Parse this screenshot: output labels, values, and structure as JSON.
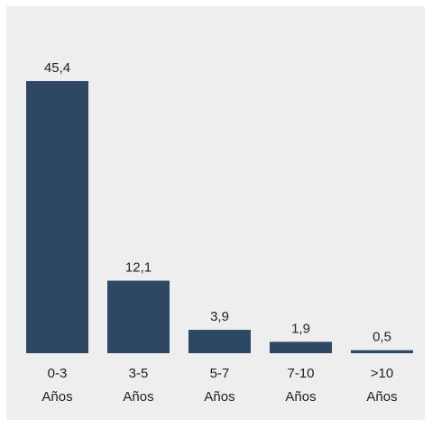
{
  "chart_data": {
    "type": "bar",
    "categories": [
      [
        "0-3",
        "Años"
      ],
      [
        "3-5",
        "Años"
      ],
      [
        "5-7",
        "Años"
      ],
      [
        "7-10",
        "Años"
      ],
      [
        ">10",
        "Años"
      ]
    ],
    "values": [
      45.4,
      12.1,
      3.9,
      1.9,
      0.5
    ],
    "value_labels": [
      "45,4",
      "12,1",
      "3,9",
      "1,9",
      "0,5"
    ],
    "ylim": [
      0,
      45.4
    ],
    "grid": false,
    "colors": {
      "bar": "#2e4763",
      "background": "#eeeeee",
      "text": "#222222"
    }
  }
}
